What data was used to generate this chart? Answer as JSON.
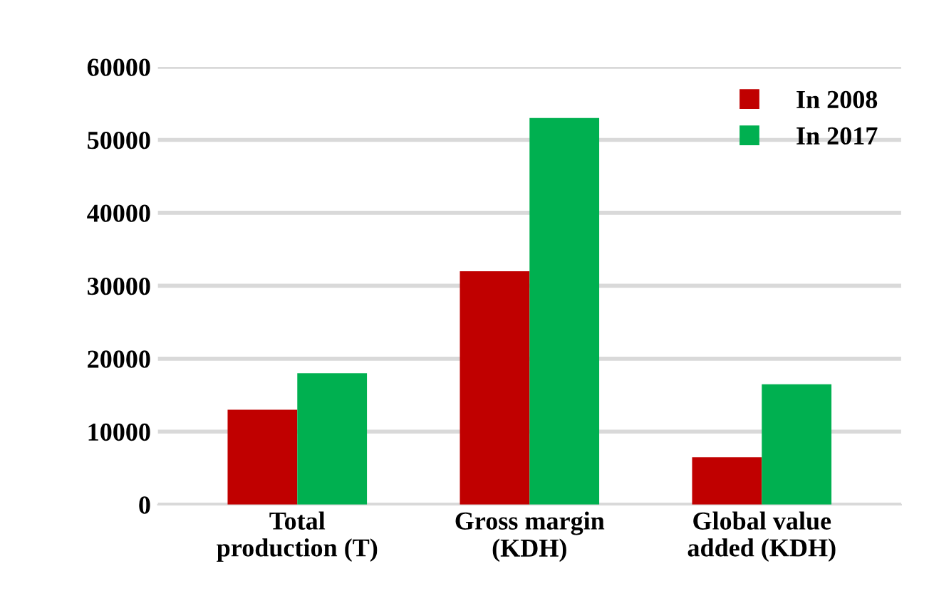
{
  "chart_data": {
    "type": "bar",
    "categories": [
      "Total\nproduction (T)",
      "Gross margin\n(KDH)",
      "Global value\nadded (KDH)"
    ],
    "series": [
      {
        "name": "In 2008",
        "color": "#c00000",
        "values": [
          13000,
          32000,
          6500
        ]
      },
      {
        "name": "In 2017",
        "color": "#00b050",
        "values": [
          18000,
          53000,
          16500
        ]
      }
    ],
    "ylim": [
      0,
      60000
    ],
    "yticks": [
      0,
      10000,
      20000,
      30000,
      40000,
      50000,
      60000
    ],
    "grid": "y",
    "legend": "top right"
  }
}
